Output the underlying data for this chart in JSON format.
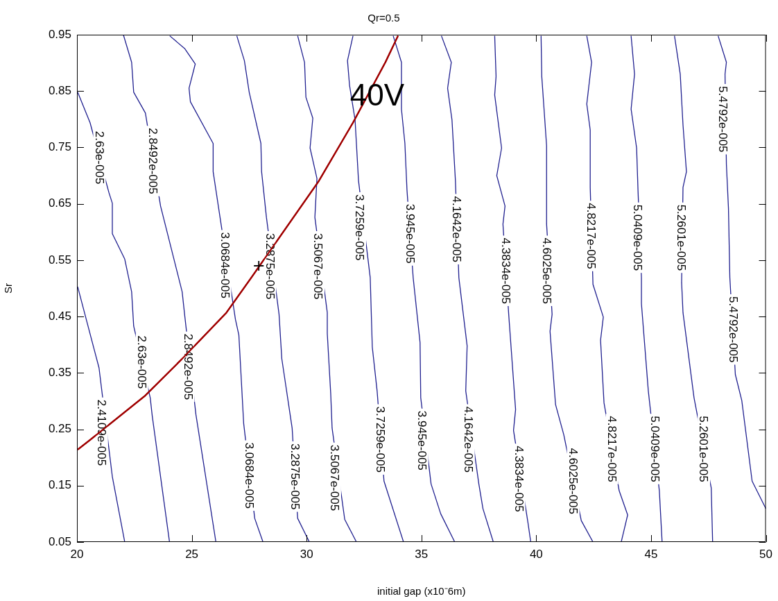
{
  "chart_data": {
    "type": "line",
    "title": "Qr=0.5",
    "xlabel": "initial gap (x10⁻6m)",
    "ylabel": "Sr",
    "xlim": [
      20,
      50
    ],
    "xticks": [
      20,
      25,
      30,
      35,
      40,
      45,
      50
    ],
    "ylim": [
      0.05,
      0.95
    ],
    "yticks": [
      0.05,
      0.15,
      0.25,
      0.35,
      0.45,
      0.55,
      0.65,
      0.75,
      0.85,
      0.95
    ],
    "legend": false,
    "marker": "none",
    "series": [
      {
        "color": "#1f1f8f",
        "x": [
          20.03,
          20.96,
          21.54,
          22.08
        ],
        "values": [
          0.503,
          0.359,
          0.166,
          0.05
        ]
      },
      {
        "color": "#1f1f8f",
        "x": [
          20.03,
          20.57,
          21.39,
          21.54,
          21.54,
          22.08,
          22.38,
          22.47,
          23.19,
          23.28,
          24.03
        ],
        "values": [
          0.848,
          0.794,
          0.67,
          0.651,
          0.597,
          0.552,
          0.494,
          0.433,
          0.306,
          0.273,
          0.05
        ]
      },
      {
        "color": "#1f1f8f",
        "x": [
          22.02,
          22.38,
          22.47,
          22.98,
          23.64,
          24.58,
          24.7,
          25.18,
          26.05
        ],
        "values": [
          0.95,
          0.901,
          0.848,
          0.811,
          0.646,
          0.494,
          0.449,
          0.276,
          0.05
        ]
      },
      {
        "color": "#1f1f8f",
        "x": [
          24.04,
          24.7,
          25.15,
          24.88,
          24.94,
          25.93,
          25.93,
          26.23,
          26.9,
          27.05,
          27.26,
          27.74,
          28.1
        ],
        "values": [
          0.948,
          0.925,
          0.898,
          0.855,
          0.831,
          0.757,
          0.707,
          0.626,
          0.445,
          0.417,
          0.26,
          0.092,
          0.05
        ]
      },
      {
        "color": "#1f1f8f",
        "x": [
          26.96,
          27.29,
          27.5,
          28.01,
          28.04,
          28.25,
          28.8,
          28.92,
          29.37,
          29.61,
          30.12
        ],
        "values": [
          0.948,
          0.904,
          0.848,
          0.757,
          0.707,
          0.626,
          0.454,
          0.375,
          0.252,
          0.092,
          0.05
        ]
      },
      {
        "color": "#1f1f8f",
        "x": [
          29.61,
          29.91,
          29.97,
          30.27,
          30.15,
          30.45,
          30.36,
          30.9,
          30.9,
          31.05,
          31.11,
          31.66,
          32.17
        ],
        "values": [
          0.948,
          0.901,
          0.839,
          0.802,
          0.749,
          0.695,
          0.626,
          0.457,
          0.42,
          0.313,
          0.252,
          0.09,
          0.05
        ]
      },
      {
        "color": "#1f1f8f",
        "x": [
          32.02,
          31.78,
          31.87,
          32.11,
          32.26,
          32.77,
          32.86,
          33.07,
          33.37,
          34.22
        ],
        "values": [
          0.948,
          0.904,
          0.86,
          0.799,
          0.691,
          0.519,
          0.396,
          0.318,
          0.158,
          0.05
        ]
      },
      {
        "color": "#1f1f8f",
        "x": [
          33.77,
          34.13,
          34.13,
          34.28,
          34.37,
          34.64,
          34.94,
          34.97,
          35.42,
          35.84,
          36.45
        ],
        "values": [
          0.948,
          0.901,
          0.818,
          0.757,
          0.675,
          0.519,
          0.404,
          0.306,
          0.153,
          0.1,
          0.05
        ]
      },
      {
        "color": "#1f1f8f",
        "x": [
          35.87,
          36.3,
          36.14,
          36.33,
          36.48,
          36.63,
          36.99,
          36.93,
          37.5,
          37.68,
          38.13
        ],
        "values": [
          0.948,
          0.901,
          0.855,
          0.799,
          0.691,
          0.519,
          0.398,
          0.318,
          0.153,
          0.109,
          0.05
        ]
      },
      {
        "color": "#1f1f8f",
        "x": [
          38.19,
          38.25,
          38.19,
          38.49,
          38.28,
          38.64,
          38.55,
          38.8,
          39.1,
          39.01,
          39.64,
          39.76
        ],
        "values": [
          0.948,
          0.876,
          0.843,
          0.749,
          0.7,
          0.646,
          0.614,
          0.454,
          0.285,
          0.248,
          0.084,
          0.05
        ]
      },
      {
        "color": "#1f1f8f",
        "x": [
          40.21,
          40.24,
          40.45,
          40.45,
          40.69,
          40.6,
          40.84,
          41.2,
          41.96,
          42.47
        ],
        "values": [
          0.948,
          0.876,
          0.753,
          0.614,
          0.454,
          0.424,
          0.294,
          0.24,
          0.088,
          0.05
        ]
      },
      {
        "color": "#1f1f8f",
        "x": [
          42.2,
          42.41,
          42.2,
          42.35,
          42.35,
          42.47,
          42.92,
          42.8,
          42.95,
          43.61,
          43.98,
          43.7
        ],
        "values": [
          0.948,
          0.901,
          0.827,
          0.781,
          0.679,
          0.507,
          0.449,
          0.408,
          0.297,
          0.141,
          0.098,
          0.05
        ]
      },
      {
        "color": "#1f1f8f",
        "x": [
          44.13,
          44.28,
          44.13,
          44.37,
          44.43,
          44.58,
          44.58,
          44.88,
          45.36,
          45.48
        ],
        "values": [
          0.948,
          0.88,
          0.818,
          0.749,
          0.675,
          0.519,
          0.473,
          0.318,
          0.141,
          0.05
        ]
      },
      {
        "color": "#1f1f8f",
        "x": [
          46.02,
          46.27,
          46.39,
          46.54,
          46.39,
          46.33,
          46.39,
          46.87,
          47.62,
          47.68
        ],
        "values": [
          0.948,
          0.88,
          0.79,
          0.707,
          0.679,
          0.51,
          0.457,
          0.306,
          0.146,
          0.05
        ]
      },
      {
        "color": "#1f1f8f",
        "x": [
          47.92,
          48.28,
          48.22,
          48.28,
          48.37,
          48.43,
          48.67,
          48.95,
          49.4,
          50.0
        ],
        "values": [
          0.948,
          0.901,
          0.88,
          0.72,
          0.642,
          0.519,
          0.347,
          0.301,
          0.158,
          0.109
        ]
      },
      {
        "name": "40V",
        "color": "#a00000",
        "x": [
          20.03,
          20.6,
          22.98,
          24.58,
          26.51,
          27.59,
          30.51,
          32.02,
          33.43,
          33.98
        ],
        "values": [
          0.214,
          0.232,
          0.31,
          0.375,
          0.457,
          0.519,
          0.689,
          0.794,
          0.901,
          0.948
        ]
      },
      {
        "type": "scatter",
        "marker": "cross",
        "color": "#000000",
        "x": [
          27.92
        ],
        "values": [
          0.54
        ]
      }
    ],
    "annotations": [
      {
        "text": "2.4109e-005",
        "x": 21.08,
        "y": 0.244
      },
      {
        "text": "2.63e-005",
        "x": 20.98,
        "y": 0.732
      },
      {
        "text": "2.63e-005",
        "x": 22.83,
        "y": 0.369
      },
      {
        "text": "2.8492e-005",
        "x": 23.32,
        "y": 0.726
      },
      {
        "text": "2.8492e-005",
        "x": 24.85,
        "y": 0.361
      },
      {
        "text": "3.0684e-005",
        "x": 26.45,
        "y": 0.541
      },
      {
        "text": "3.0684e-005",
        "x": 27.52,
        "y": 0.168
      },
      {
        "text": "3.2875e-005",
        "x": 28.4,
        "y": 0.539
      },
      {
        "text": "3.2875e-005",
        "x": 29.5,
        "y": 0.166
      },
      {
        "text": "3.5067e-005",
        "x": 30.51,
        "y": 0.539
      },
      {
        "text": "3.5067e-005",
        "x": 31.23,
        "y": 0.164
      },
      {
        "text": "3.7259e-005",
        "x": 32.32,
        "y": 0.608
      },
      {
        "text": "3.7259e-005",
        "x": 33.23,
        "y": 0.232
      },
      {
        "text": "3.945e-005",
        "x": 34.5,
        "y": 0.597
      },
      {
        "text": "3.945e-005",
        "x": 35.03,
        "y": 0.23
      },
      {
        "text": "4.1642e-005",
        "x": 36.54,
        "y": 0.605
      },
      {
        "text": "4.1642e-005",
        "x": 37.05,
        "y": 0.232
      },
      {
        "text": "4.3834e-005",
        "x": 38.68,
        "y": 0.531
      },
      {
        "text": "4.3834e-005",
        "x": 39.25,
        "y": 0.162
      },
      {
        "text": "4.6025e-005",
        "x": 40.45,
        "y": 0.531
      },
      {
        "text": "4.6025e-005",
        "x": 41.61,
        "y": 0.158
      },
      {
        "text": "4.8217e-005",
        "x": 42.41,
        "y": 0.593
      },
      {
        "text": "4.8217e-005",
        "x": 43.3,
        "y": 0.215
      },
      {
        "text": "5.0409e-005",
        "x": 44.43,
        "y": 0.59
      },
      {
        "text": "5.0409e-005",
        "x": 45.16,
        "y": 0.215
      },
      {
        "text": "5.2601e-005",
        "x": 46.33,
        "y": 0.59
      },
      {
        "text": "5.2601e-005",
        "x": 47.3,
        "y": 0.215
      },
      {
        "text": "5.4792e-005",
        "x": 48.13,
        "y": 0.8
      },
      {
        "text": "5.4792e-005",
        "x": 48.58,
        "y": 0.427
      }
    ]
  }
}
